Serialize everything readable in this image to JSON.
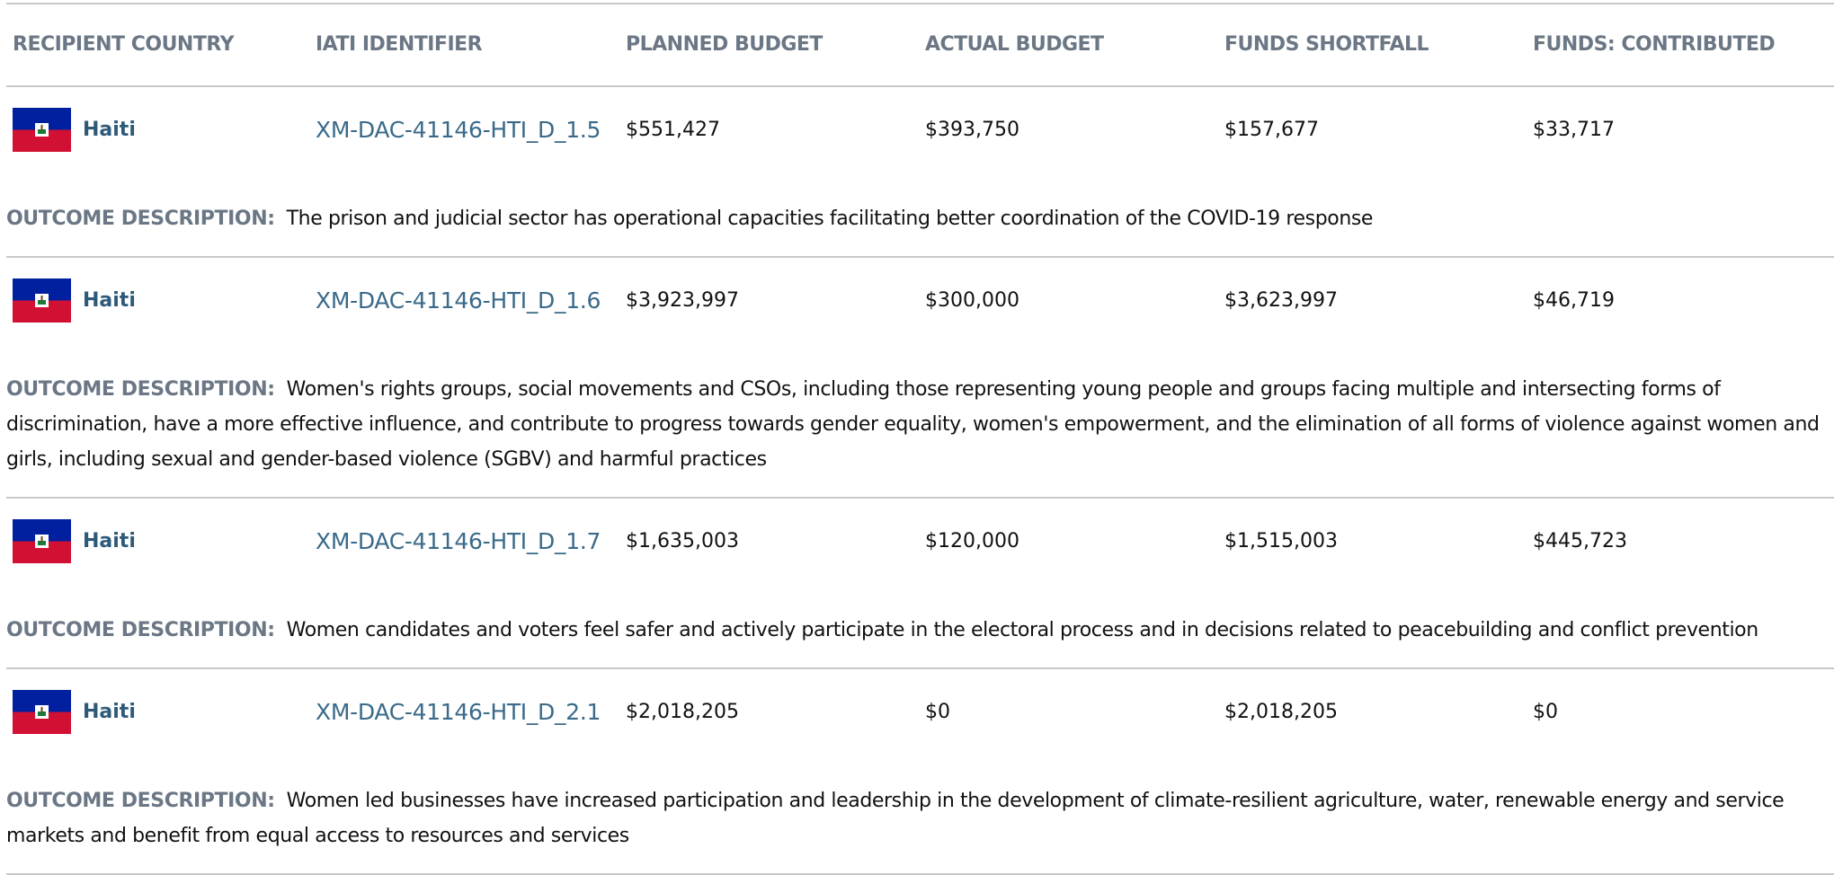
{
  "table": {
    "columns": [
      "RECIPIENT COUNTRY",
      "IATI IDENTIFIER",
      "PLANNED BUDGET",
      "ACTUAL BUDGET",
      "FUNDS SHORTFALL",
      "FUNDS: CONTRIBUTED"
    ],
    "outcome_label": "OUTCOME DESCRIPTION:",
    "rows": [
      {
        "country": "Haiti",
        "iati_id": "XM-DAC-41146-HTI_D_1.5",
        "planned": "$551,427",
        "actual": "$393,750",
        "shortfall": "$157,677",
        "contributed": "$33,717",
        "description": "The prison and judicial sector has operational capacities facilitating better coordination of the COVID-19 response"
      },
      {
        "country": "Haiti",
        "iati_id": "XM-DAC-41146-HTI_D_1.6",
        "planned": "$3,923,997",
        "actual": "$300,000",
        "shortfall": "$3,623,997",
        "contributed": "$46,719",
        "description": "Women's rights groups, social movements and CSOs, including those representing young people and groups facing multiple and intersecting forms of discrimination, have a more effective influence, and contribute to progress towards gender equality, women's empowerment, and the elimination of all forms of violence against women and girls, including sexual and gender-based violence (SGBV) and harmful practices"
      },
      {
        "country": "Haiti",
        "iati_id": "XM-DAC-41146-HTI_D_1.7",
        "planned": "$1,635,003",
        "actual": "$120,000",
        "shortfall": "$1,515,003",
        "contributed": "$445,723",
        "description": "Women candidates and voters feel safer and actively participate in the electoral process and in decisions related to peacebuilding and conflict prevention"
      },
      {
        "country": "Haiti",
        "iati_id": "XM-DAC-41146-HTI_D_2.1",
        "planned": "$2,018,205",
        "actual": "$0",
        "shortfall": "$2,018,205",
        "contributed": "$0",
        "description": "Women led businesses have increased participation and leadership in the development of climate-resilient agriculture, water, renewable energy and service markets and benefit from equal access to resources and services"
      }
    ]
  }
}
